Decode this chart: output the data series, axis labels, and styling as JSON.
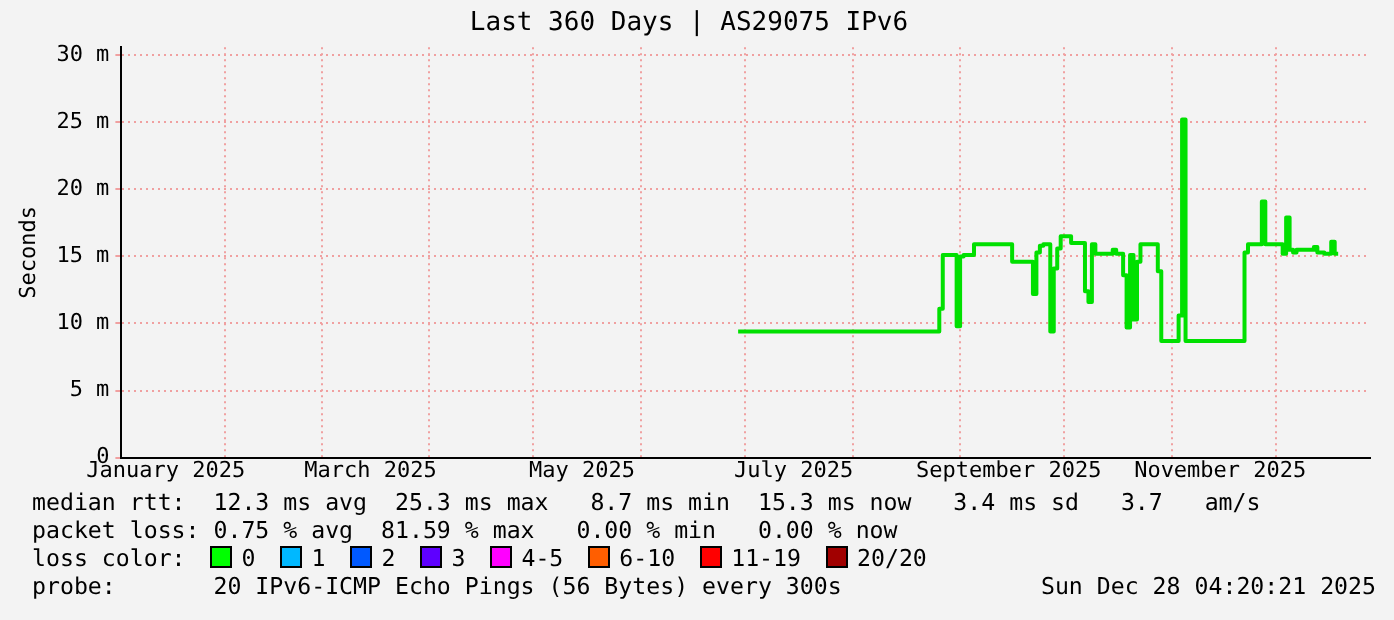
{
  "chart_data": {
    "type": "step",
    "title": "Last 360 Days | AS29075 IPv6",
    "ylabel": "Seconds",
    "x": [
      "2025-06-29",
      "2025-08-26",
      "2025-08-27",
      "2025-08-28",
      "2025-08-31",
      "2025-09-01",
      "2025-09-02",
      "2025-09-05",
      "2025-09-06",
      "2025-09-16",
      "2025-09-17",
      "2025-09-22",
      "2025-09-23",
      "2025-09-24",
      "2025-09-25",
      "2025-09-27",
      "2025-09-28",
      "2025-09-29",
      "2025-09-30",
      "2025-10-03",
      "2025-10-04",
      "2025-10-07",
      "2025-10-08",
      "2025-10-09",
      "2025-10-10",
      "2025-10-12",
      "2025-10-15",
      "2025-10-16",
      "2025-10-18",
      "2025-10-19",
      "2025-10-20",
      "2025-10-21",
      "2025-10-22",
      "2025-10-23",
      "2025-10-25",
      "2025-10-28",
      "2025-10-29",
      "2025-10-30",
      "2025-11-03",
      "2025-11-04",
      "2025-11-05",
      "2025-11-06",
      "2025-11-22",
      "2025-11-23",
      "2025-11-24",
      "2025-11-27",
      "2025-11-28",
      "2025-11-29",
      "2025-12-03",
      "2025-12-04",
      "2025-12-05",
      "2025-12-06",
      "2025-12-07",
      "2025-12-10",
      "2025-12-12",
      "2025-12-13",
      "2025-12-15",
      "2025-12-17",
      "2025-12-18",
      "2025-12-19"
    ],
    "series": [
      {
        "color": "#00e000",
        "values": [
          9.4,
          9.4,
          11.1,
          15.1,
          15.1,
          9.8,
          15.0,
          15.1,
          15.9,
          15.9,
          14.6,
          14.6,
          12.2,
          15.3,
          15.8,
          15.9,
          9.4,
          14.1,
          15.6,
          16.5,
          16.0,
          16.0,
          12.4,
          11.6,
          15.9,
          15.2,
          15.2,
          15.5,
          15.2,
          13.6,
          9.7,
          15.1,
          10.3,
          14.6,
          15.9,
          15.9,
          13.9,
          8.7,
          8.7,
          10.6,
          25.2,
          8.7,
          8.7,
          15.3,
          15.9,
          15.9,
          19.1,
          15.9,
          15.9,
          15.2,
          17.9,
          15.5,
          15.3,
          15.5,
          15.5,
          15.7,
          15.3,
          15.2,
          16.1,
          15.2
        ]
      }
    ],
    "xlim": [
      "2025-01-02T04:20",
      "2025-12-28T04:20"
    ],
    "xticks": [
      {
        "value": "2025-01-15",
        "label": "January 2025"
      },
      {
        "value": "2025-02-01",
        "label": null
      },
      {
        "value": "2025-03-01",
        "label": null
      },
      {
        "value": "2025-03-15",
        "label": "March 2025"
      },
      {
        "value": "2025-04-01",
        "label": null
      },
      {
        "value": "2025-05-01",
        "label": null
      },
      {
        "value": "2025-05-15",
        "label": "May 2025"
      },
      {
        "value": "2025-06-01",
        "label": null
      },
      {
        "value": "2025-07-01",
        "label": null
      },
      {
        "value": "2025-07-15",
        "label": "July 2025"
      },
      {
        "value": "2025-08-01",
        "label": null
      },
      {
        "value": "2025-09-01",
        "label": null
      },
      {
        "value": "2025-09-15",
        "label": "September 2025"
      },
      {
        "value": "2025-10-01",
        "label": null
      },
      {
        "value": "2025-11-01",
        "label": null
      },
      {
        "value": "2025-11-15",
        "label": "November 2025"
      },
      {
        "value": "2025-12-01",
        "label": null
      }
    ],
    "ylim": [
      0,
      30.6
    ],
    "yticks": [
      0,
      {
        "value": 5,
        "label": "5 m"
      },
      {
        "value": 10,
        "label": "10 m"
      },
      {
        "value": 15,
        "label": "15 m"
      },
      {
        "value": 20,
        "label": "20 m"
      },
      {
        "value": 25,
        "label": "25 m"
      },
      {
        "value": 30,
        "label": "30 m"
      }
    ],
    "grid": true,
    "annotations": [
      "median rtt:  12.3 ms avg  25.3 ms max   8.7 ms min  15.3 ms now   3.4 ms sd   3.7   am/s",
      "packet loss: 0.75 % avg  81.59 % max   0.00 % min   0.00 % now",
      "loss color:",
      "0",
      "1",
      "2",
      "3",
      "4-5",
      "6-10",
      "11-19",
      "20/20",
      "probe:       20 IPv6-ICMP Echo Pings (56 Bytes) every 300s",
      "Sun Dec 28 04:20:21 2025"
    ]
  }
}
